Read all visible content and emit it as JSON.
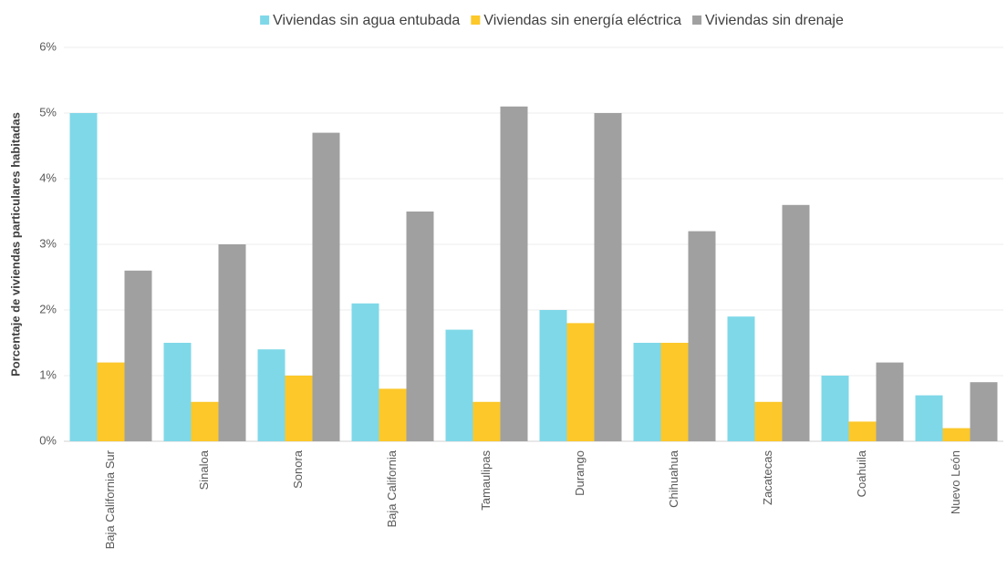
{
  "chart_data": {
    "type": "bar",
    "y_label": "Porcentaje de viviendas particulares habitadas",
    "categories": [
      "Baja California Sur",
      "Sinaloa",
      "Sonora",
      "Baja California",
      "Tamaulipas",
      "Durango",
      "Chihuahua",
      "Zacatecas",
      "Coahuila",
      "Nuevo León"
    ],
    "series": [
      {
        "name": "Viviendas sin agua entubada",
        "color": "#7fd8e8",
        "values": [
          5,
          1.5,
          1.4,
          2.1,
          1.7,
          2,
          1.5,
          1.9,
          1,
          0.7
        ]
      },
      {
        "name": "Viviendas sin energía eléctrica",
        "color": "#fcc82a",
        "values": [
          1.2,
          0.6,
          1,
          0.8,
          0.6,
          1.8,
          1.5,
          0.6,
          0.3,
          0.2
        ]
      },
      {
        "name": "Viviendas sin drenaje",
        "color": "#a0a0a0",
        "values": [
          2.6,
          3,
          4.7,
          3.5,
          5.1,
          5,
          3.2,
          3.6,
          1.2,
          0.9
        ]
      }
    ],
    "ylim": [
      0,
      6
    ],
    "yticks": [
      {
        "value": 0,
        "label": "0%"
      },
      {
        "value": 1,
        "label": "1%"
      },
      {
        "value": 2,
        "label": "2%"
      },
      {
        "value": 3,
        "label": "3%"
      },
      {
        "value": 4,
        "label": "4%"
      },
      {
        "value": 5,
        "label": "5%"
      },
      {
        "value": 6,
        "label": "6%"
      }
    ],
    "grid": true,
    "legend": "top"
  }
}
